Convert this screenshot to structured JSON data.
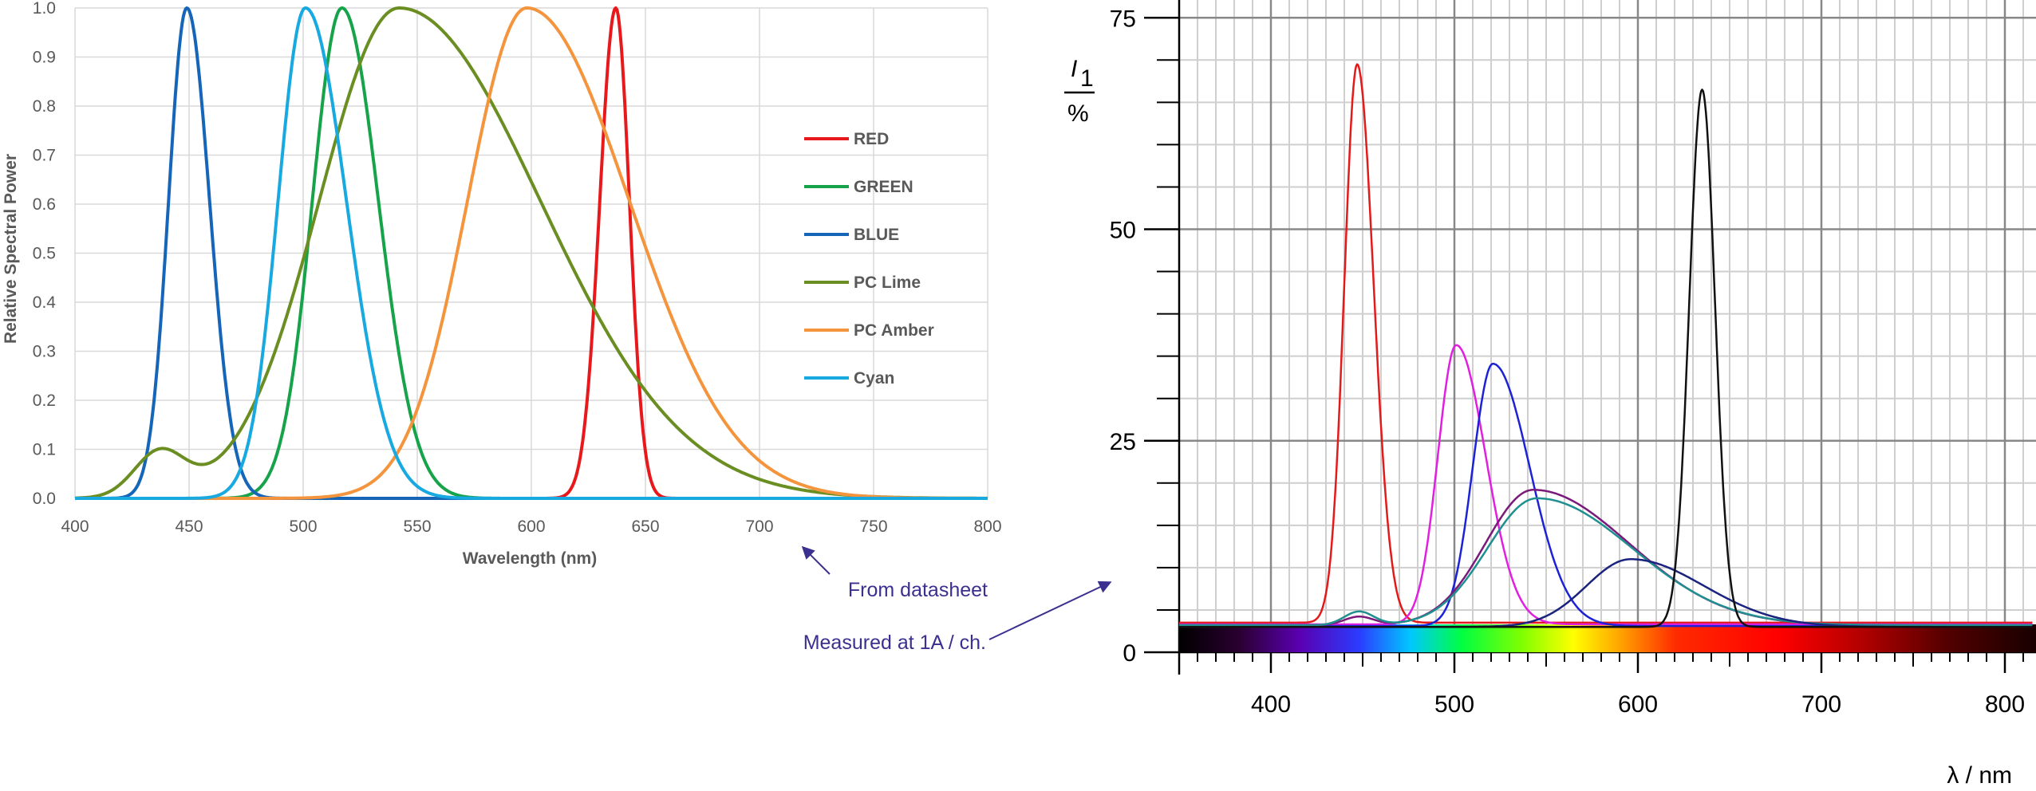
{
  "chart_data": [
    {
      "type": "line",
      "title": "",
      "xlabel": "Wavelength (nm)",
      "ylabel": "Relative Spectral Power",
      "xlim": [
        400,
        800
      ],
      "ylim": [
        0,
        1.0
      ],
      "xticks": [
        400,
        450,
        500,
        550,
        600,
        650,
        700,
        750,
        800
      ],
      "yticks": [
        0.0,
        0.1,
        0.2,
        0.3,
        0.4,
        0.5,
        0.6,
        0.7,
        0.8,
        0.9,
        1.0
      ],
      "ytick_labels": [
        "0.0",
        "0.1",
        "0.2",
        "0.3",
        "0.4",
        "0.5",
        "0.6",
        "0.7",
        "0.8",
        "0.9",
        "1.0"
      ],
      "grid": true,
      "legend_position": "right",
      "series": [
        {
          "name": "RED",
          "color": "#e8191c",
          "peaks": [
            {
              "center": 637,
              "height": 1.0,
              "sigma_left": 7,
              "sigma_right": 6
            }
          ]
        },
        {
          "name": "GREEN",
          "color": "#16a34a",
          "peaks": [
            {
              "center": 517,
              "height": 1.0,
              "sigma_left": 13,
              "sigma_right": 16
            }
          ]
        },
        {
          "name": "BLUE",
          "color": "#1565b8",
          "peaks": [
            {
              "center": 449,
              "height": 1.0,
              "sigma_left": 8,
              "sigma_right": 10
            }
          ]
        },
        {
          "name": "PC Lime",
          "color": "#6b8e23",
          "peaks": [
            {
              "center": 437,
              "height": 0.09,
              "sigma_left": 11,
              "sigma_right": 11
            },
            {
              "center": 542,
              "height": 1.0,
              "sigma_left": 35,
              "sigma_right": 62
            }
          ]
        },
        {
          "name": "PC Amber",
          "color": "#f4953e",
          "peaks": [
            {
              "center": 598,
              "height": 1.0,
              "sigma_left": 26,
              "sigma_right": 45
            }
          ]
        },
        {
          "name": "Cyan",
          "color": "#17a9e0",
          "peaks": [
            {
              "center": 501,
              "height": 1.0,
              "sigma_left": 12,
              "sigma_right": 18
            }
          ]
        }
      ]
    },
    {
      "type": "line",
      "title": "",
      "xlabel": "λ / nm",
      "ylabel": "I/1 %",
      "ylabel_var": "I",
      "ylabel_sub": "1",
      "ylabel_unit": "%",
      "xlim": [
        350,
        815
      ],
      "ylim": [
        0,
        78
      ],
      "xticks": [
        400,
        500,
        600,
        700,
        800
      ],
      "yticks": [
        0,
        25,
        50,
        75
      ],
      "grid": true,
      "spectrum_bar": true,
      "series": [
        {
          "name": "red",
          "color": "#e31a1a",
          "baseline": 3.5,
          "peaks": [
            {
              "center": 447,
              "height": 66,
              "sigma_left": 7,
              "sigma_right": 9
            }
          ]
        },
        {
          "name": "magenta",
          "color": "#e11fe0",
          "baseline": 3.3,
          "peaks": [
            {
              "center": 501,
              "height": 33,
              "sigma_left": 10,
              "sigma_right": 16
            }
          ]
        },
        {
          "name": "blue",
          "color": "#1c22d6",
          "baseline": 3.1,
          "peaks": [
            {
              "center": 521,
              "height": 31,
              "sigma_left": 11,
              "sigma_right": 20
            }
          ]
        },
        {
          "name": "purple",
          "color": "#7a1a7a",
          "baseline": 3.2,
          "peaks": [
            {
              "center": 448,
              "height": 1.0,
              "sigma_left": 8,
              "sigma_right": 8
            },
            {
              "center": 543,
              "height": 16,
              "sigma_left": 26,
              "sigma_right": 52
            }
          ]
        },
        {
          "name": "teal",
          "color": "#1f8f8f",
          "baseline": 3.2,
          "peaks": [
            {
              "center": 448,
              "height": 1.6,
              "sigma_left": 8,
              "sigma_right": 8
            },
            {
              "center": 545,
              "height": 15,
              "sigma_left": 27,
              "sigma_right": 52
            }
          ]
        },
        {
          "name": "navy",
          "color": "#1a237e",
          "baseline": 3.0,
          "peaks": [
            {
              "center": 596,
              "height": 8,
              "sigma_left": 24,
              "sigma_right": 40
            }
          ]
        },
        {
          "name": "black",
          "color": "#111111",
          "baseline": 3.0,
          "peaks": [
            {
              "center": 635,
              "height": 63.5,
              "sigma_left": 7,
              "sigma_right": 7
            }
          ]
        }
      ]
    }
  ],
  "annotations": {
    "from_datasheet": "From datasheet",
    "measured": "Measured at 1A / ch."
  }
}
